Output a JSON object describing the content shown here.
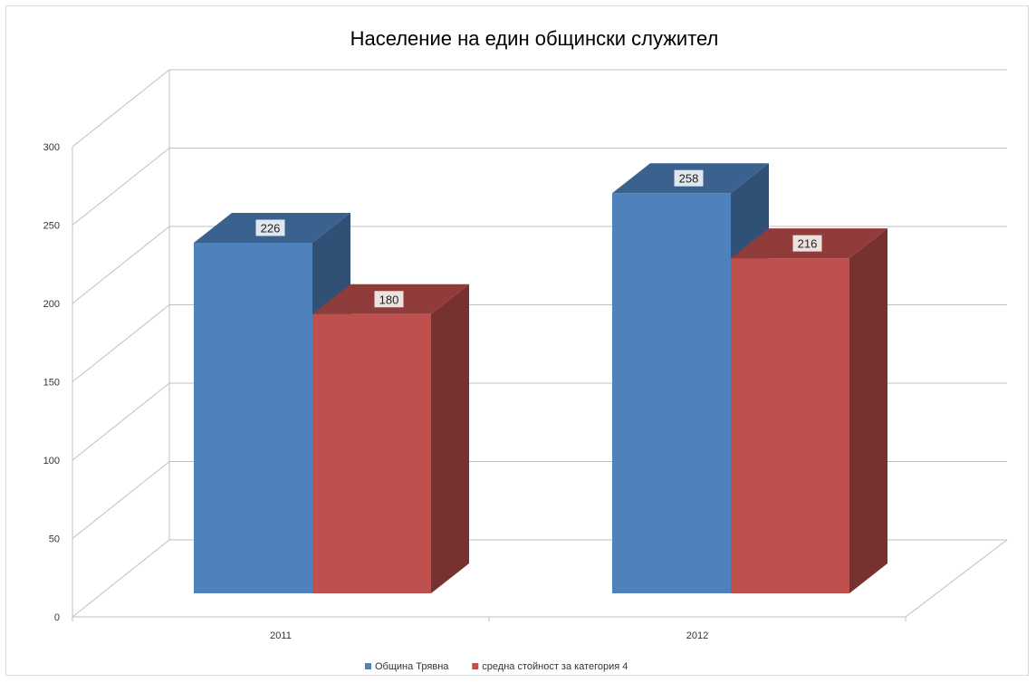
{
  "chart_data": {
    "type": "bar",
    "title": "Население на един общински служител",
    "categories": [
      "2011",
      "2012"
    ],
    "series": [
      {
        "name": "Община Трявна",
        "values": [
          226,
          258
        ],
        "color": "#4f81bd"
      },
      {
        "name": "средна стойност за категория 4",
        "values": [
          180,
          216
        ],
        "color": "#c0504d"
      }
    ],
    "ylim": [
      0,
      300
    ],
    "yticks": [
      "0",
      "50",
      "100",
      "150",
      "200",
      "250",
      "300"
    ],
    "grid": true,
    "legend_position": "bottom",
    "style": "3d-clustered-column",
    "data_labels": true
  }
}
